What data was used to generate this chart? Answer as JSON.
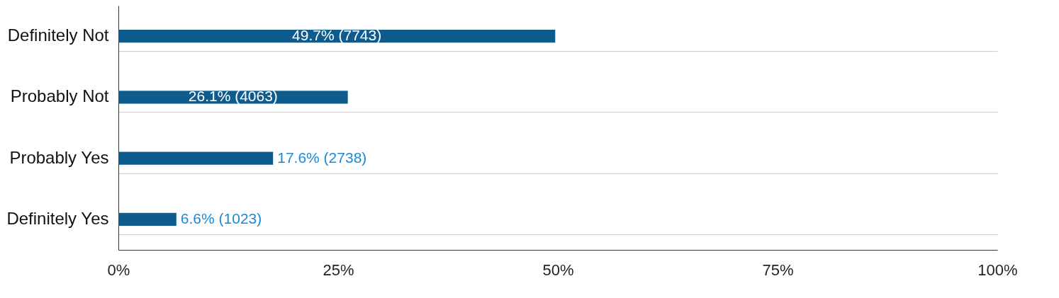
{
  "chart_data": {
    "type": "bar",
    "orientation": "horizontal",
    "categories": [
      "Definitely Not",
      "Probably Not",
      "Probably Yes",
      "Definitely Yes"
    ],
    "values": [
      49.7,
      26.1,
      17.6,
      6.6
    ],
    "value_labels": [
      "49.7% (7743)",
      "26.1% (4063)",
      "17.6% (2738)",
      "6.6% (1023)"
    ],
    "color": "#0e5c8e",
    "xlim": [
      0,
      100
    ],
    "xticks": [
      {
        "value": 0,
        "label": "0%"
      },
      {
        "value": 25,
        "label": "25%"
      },
      {
        "value": 50,
        "label": "50%"
      },
      {
        "value": 75,
        "label": "75%"
      },
      {
        "value": 100,
        "label": "100%"
      }
    ],
    "grid": "y"
  }
}
